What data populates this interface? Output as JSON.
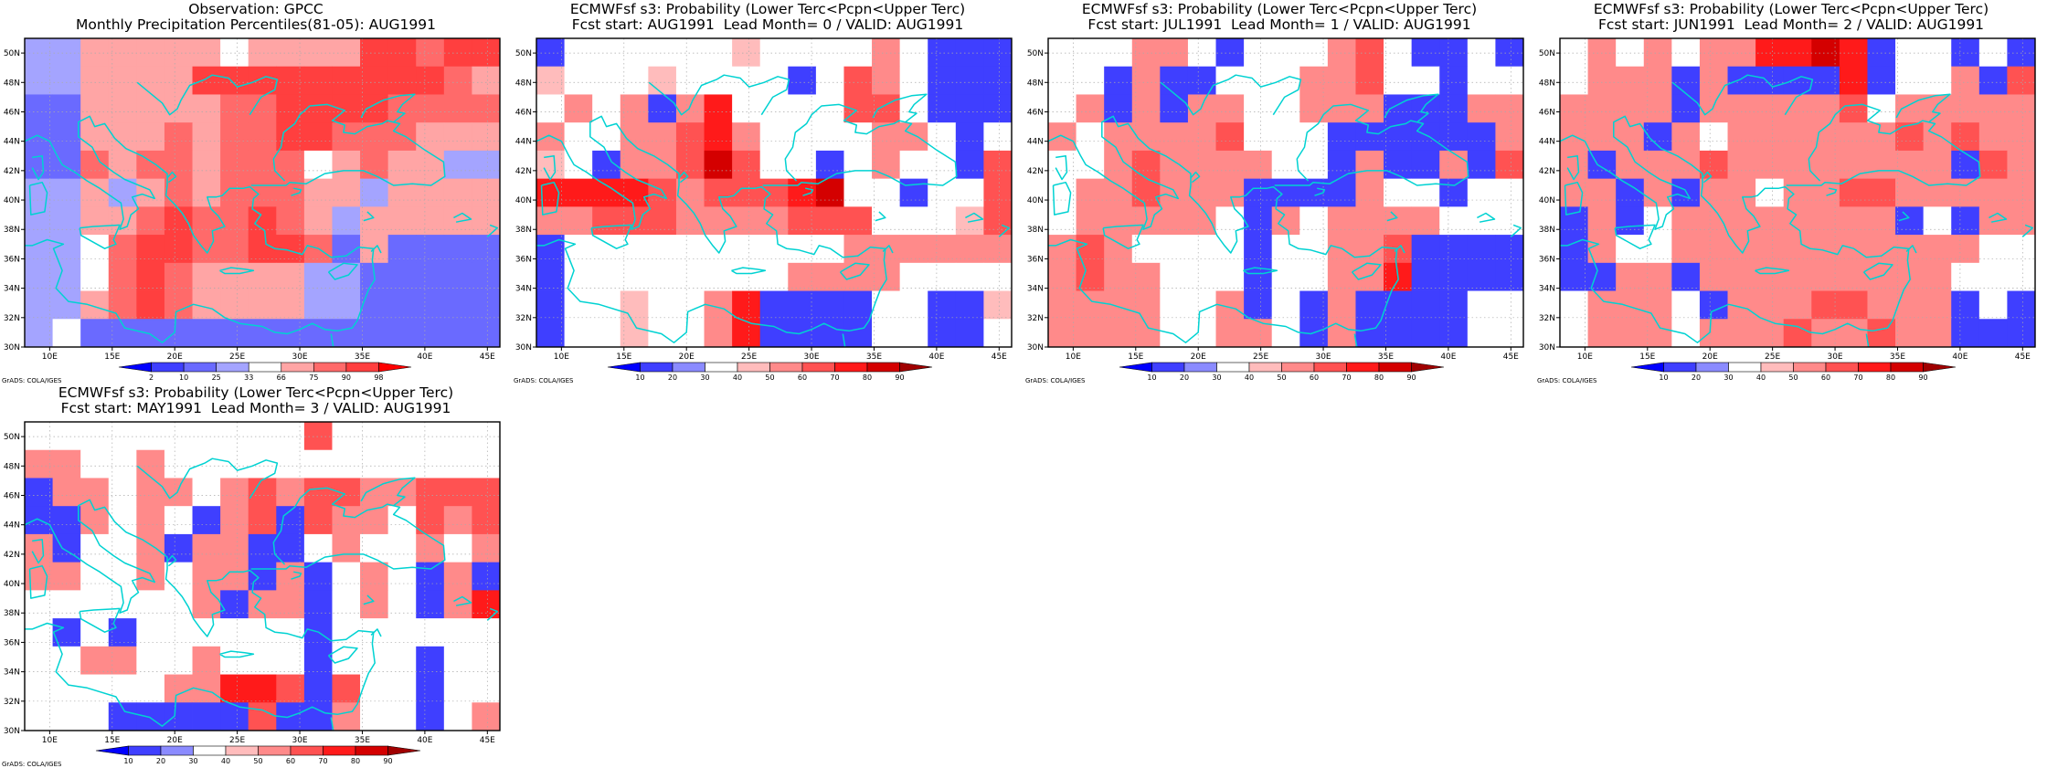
{
  "map_extent": {
    "lon": [
      8,
      46
    ],
    "lat": [
      30,
      51
    ]
  },
  "axes": {
    "x_ticks": [
      "10E",
      "15E",
      "20E",
      "25E",
      "30E",
      "35E",
      "40E",
      "45E"
    ],
    "y_ticks": [
      "50N",
      "48N",
      "46N",
      "44N",
      "42N",
      "40N",
      "38N",
      "36N",
      "34N",
      "32N",
      "30N"
    ]
  },
  "colors": {
    "coast": "#00d2d2",
    "frame": "#000000",
    "grid": "#aaaaaa"
  },
  "panels": [
    {
      "id": "obs",
      "title_line1": "Observation: GPCC",
      "title_line2": "Monthly Precipitation Percentiles(81-05): AUG1991",
      "footer": "GrADS: COLA/IGES",
      "colorbar": {
        "labels": [
          "2",
          "10",
          "25",
          "33",
          "66",
          "75",
          "90",
          "98"
        ],
        "colors": [
          "#0000ff",
          "#3f3fff",
          "#6a6aff",
          "#a4a4ff",
          "#ffffff",
          "#ffa5a5",
          "#ff6a6a",
          "#ff3f3f",
          "#ff0000"
        ]
      },
      "grid": [
        "3 3 5 5 5 5 5 4 5 5 5 5 7 7 6 7 7",
        "3 3 5 5 5 5 7 7 7 7 7 7 7 7 7 6 5",
        "2 2 5 5 5 5 5 6 6 7 7 7 7 6 6 6 6",
        "2 2 5 5 5 6 5 6 6 7 7 6 6 6 5 5 5",
        "2 2 6 5 6 6 5 6 6 6 4 5 6 5 5 3 3",
        "3 3 5 3 5 6 5 6 6 6 5 5 3 5 5 5 5",
        "3 3 5 5 6 7 6 6 7 6 5 3 5 5 5 5 5",
        "3 3 4 6 7 7 6 6 7 7 6 2 5 2 2 2 2",
        "3 3 4 6 7 6 5 5 5 5 3 3 2 2 2 2 2",
        "3 3 5 6 7 6 5 5 5 5 3 3 2 2 2 2 2",
        "3 4 2 2 2 2 2 2 2 2 2 2 2 2 2 2 2"
      ]
    },
    {
      "id": "lead0",
      "title_line1": "ECMWFsf s3: Probability (Lower Terc<Pcpn<Upper Terc)",
      "title_line2": "Fcst start: AUG1991  Lead Month= 0 / VALID: AUG1991",
      "footer": "GrADS: COLA/IGES",
      "colorbar": {
        "labels": [
          "10",
          "20",
          "30",
          "40",
          "50",
          "60",
          "70",
          "80",
          "90"
        ],
        "colors": [
          "#0000ff",
          "#3f3fff",
          "#8b8bff",
          "#ffffff",
          "#ffbcbc",
          "#ff8a8a",
          "#ff5252",
          "#ff1a1a",
          "#d40000",
          "#a00000"
        ]
      },
      "grid": [
        "1 3 3 3 3 3 3 4 3 3 3 3 5 3 1 1 1",
        "4 3 3 3 4 3 3 3 3 1 3 6 5 3 1 1 1",
        "3 5 3 5 1 5 7 3 3 3 3 6 6 3 1 1 1",
        "5 3 3 5 5 6 7 5 3 3 3 3 5 5 3 1 3",
        "4 3 1 5 5 6 8 6 3 3 1 3 5 3 3 1 6",
        "7 7 7 7 6 5 6 6 6 7 8 3 3 1 3 3 6",
        "5 5 6 6 6 5 5 5 5 6 6 6 3 3 3 4 6",
        "1 3 3 3 3 3 3 3 3 3 3 5 5 5 5 5 5",
        "1 3 3 3 3 3 3 3 3 5 5 5 5 3 3 3 3",
        "1 3 3 4 3 3 5 7 1 1 1 1 3 3 1 1 4",
        "1 3 3 4 3 3 5 7 1 1 1 1 3 3 1 1 3"
      ]
    },
    {
      "id": "lead1",
      "title_line1": "ECMWFsf s3: Probability (Lower Terc<Pcpn<Upper Terc)",
      "title_line2": "Fcst start: JUL1991  Lead Month= 1 / VALID: AUG1991",
      "footer": "GrADS: COLA/IGES",
      "colorbar": {
        "labels": [
          "10",
          "20",
          "30",
          "40",
          "50",
          "60",
          "70",
          "80",
          "90"
        ],
        "colors": [
          "#0000ff",
          "#3f3fff",
          "#8b8bff",
          "#ffffff",
          "#ffbcbc",
          "#ff8a8a",
          "#ff5252",
          "#ff1a1a",
          "#d40000",
          "#a00000"
        ]
      },
      "grid": [
        "3 3 3 5 5 3 1 3 3 3 5 6 3 1 1 3 1",
        "3 3 1 5 1 1 3 3 3 5 5 6 3 3 1 3 3",
        "3 5 1 5 1 5 5 3 3 5 5 5 1 1 1 5 5",
        "5 3 5 5 5 5 6 3 3 3 1 1 1 1 1 1 5",
        "3 3 5 6 5 5 5 5 3 3 1 5 1 1 5 1 6",
        "3 5 5 6 5 5 5 1 1 1 1 5 3 3 1 3 3",
        "3 5 5 5 5 5 3 1 5 3 5 5 5 5 3 3 3",
        "5 6 5 3 3 3 3 1 3 3 5 5 6 1 1 1 1",
        "5 6 5 5 3 3 3 1 3 3 5 5 7 1 1 1 1",
        "5 5 5 5 3 3 5 1 3 1 5 1 1 1 1 3 3",
        "5 5 5 5 3 3 5 5 3 1 5 1 1 1 1 3 3"
      ]
    },
    {
      "id": "lead2",
      "title_line1": "ECMWFsf s3: Probability (Lower Terc<Pcpn<Upper Terc)",
      "title_line2": "Fcst start: JUN1991  Lead Month= 2 / VALID: AUG1991",
      "footer": "GrADS: COLA/IGES",
      "colorbar": {
        "labels": [
          "10",
          "20",
          "30",
          "40",
          "50",
          "60",
          "70",
          "80",
          "90"
        ],
        "colors": [
          "#0000ff",
          "#3f3fff",
          "#8b8bff",
          "#ffffff",
          "#ffbcbc",
          "#ff8a8a",
          "#ff5252",
          "#ff1a1a",
          "#d40000",
          "#a00000"
        ]
      },
      "grid": [
        "3 5 3 5 3 5 5 7 7 8 7 1 3 3 1 3 1",
        "3 5 5 5 1 5 1 1 1 1 7 1 3 3 5 1 6",
        "5 5 5 5 1 5 5 5 5 5 6 3 5 5 5 5 5",
        "5 5 5 1 5 3 5 5 5 5 5 5 6 5 6 5 5",
        "5 1 5 5 5 6 5 5 5 5 5 5 5 5 1 6 5",
        "5 5 1 5 1 5 5 3 5 5 6 6 5 5 5 5 5",
        "1 5 1 3 5 5 5 5 5 5 5 5 1 3 1 5 5",
        "1 5 3 3 5 5 5 5 5 5 5 5 5 5 5 3 3",
        "1 1 5 5 1 5 5 5 5 5 5 5 5 5 3 3 3",
        "3 5 5 5 3 1 5 5 5 6 6 5 5 5 1 3 1",
        "3 5 5 5 3 5 5 5 6 5 5 6 5 5 1 1 1"
      ]
    },
    {
      "id": "lead3",
      "title_line1": "ECMWFsf s3: Probability (Lower Terc<Pcpn<Upper Terc)",
      "title_line2": "Fcst start: MAY1991  Lead Month= 3 / VALID: AUG1991",
      "footer": "GrADS: COLA/IGES",
      "colorbar": {
        "labels": [
          "10",
          "20",
          "30",
          "40",
          "50",
          "60",
          "70",
          "80",
          "90"
        ],
        "colors": [
          "#0000ff",
          "#3f3fff",
          "#8b8bff",
          "#ffffff",
          "#ffbcbc",
          "#ff8a8a",
          "#ff5252",
          "#ff1a1a",
          "#d40000",
          "#a00000"
        ]
      },
      "grid": [
        "3 3 3 3 3 3 3 3 3 3 6 3 3 3 3 3 3",
        "5 5 3 3 5 3 3 3 3 3 3 3 3 3 3 3 3",
        "1 5 5 3 5 5 3 5 6 5 6 6 5 5 6 6 6",
        "1 1 5 3 5 3 1 5 6 1 6 5 5 3 6 5 6",
        "5 1 3 3 5 1 5 5 1 1 3 5 3 3 5 3 5",
        "5 5 3 3 5 3 5 5 1 5 1 3 5 3 1 5 1",
        "3 3 3 3 3 3 5 1 5 5 1 3 5 3 1 5 7",
        "3 1 3 1 3 3 3 3 3 3 1 3 3 3 3 3 3",
        "3 3 5 5 3 3 5 3 3 3 1 3 3 3 1 3 3",
        "3 3 3 3 3 5 5 7 7 6 1 6 3 3 1 3 3",
        "3 3 3 1 1 1 1 1 6 1 1 5 3 3 1 3 5"
      ]
    }
  ]
}
